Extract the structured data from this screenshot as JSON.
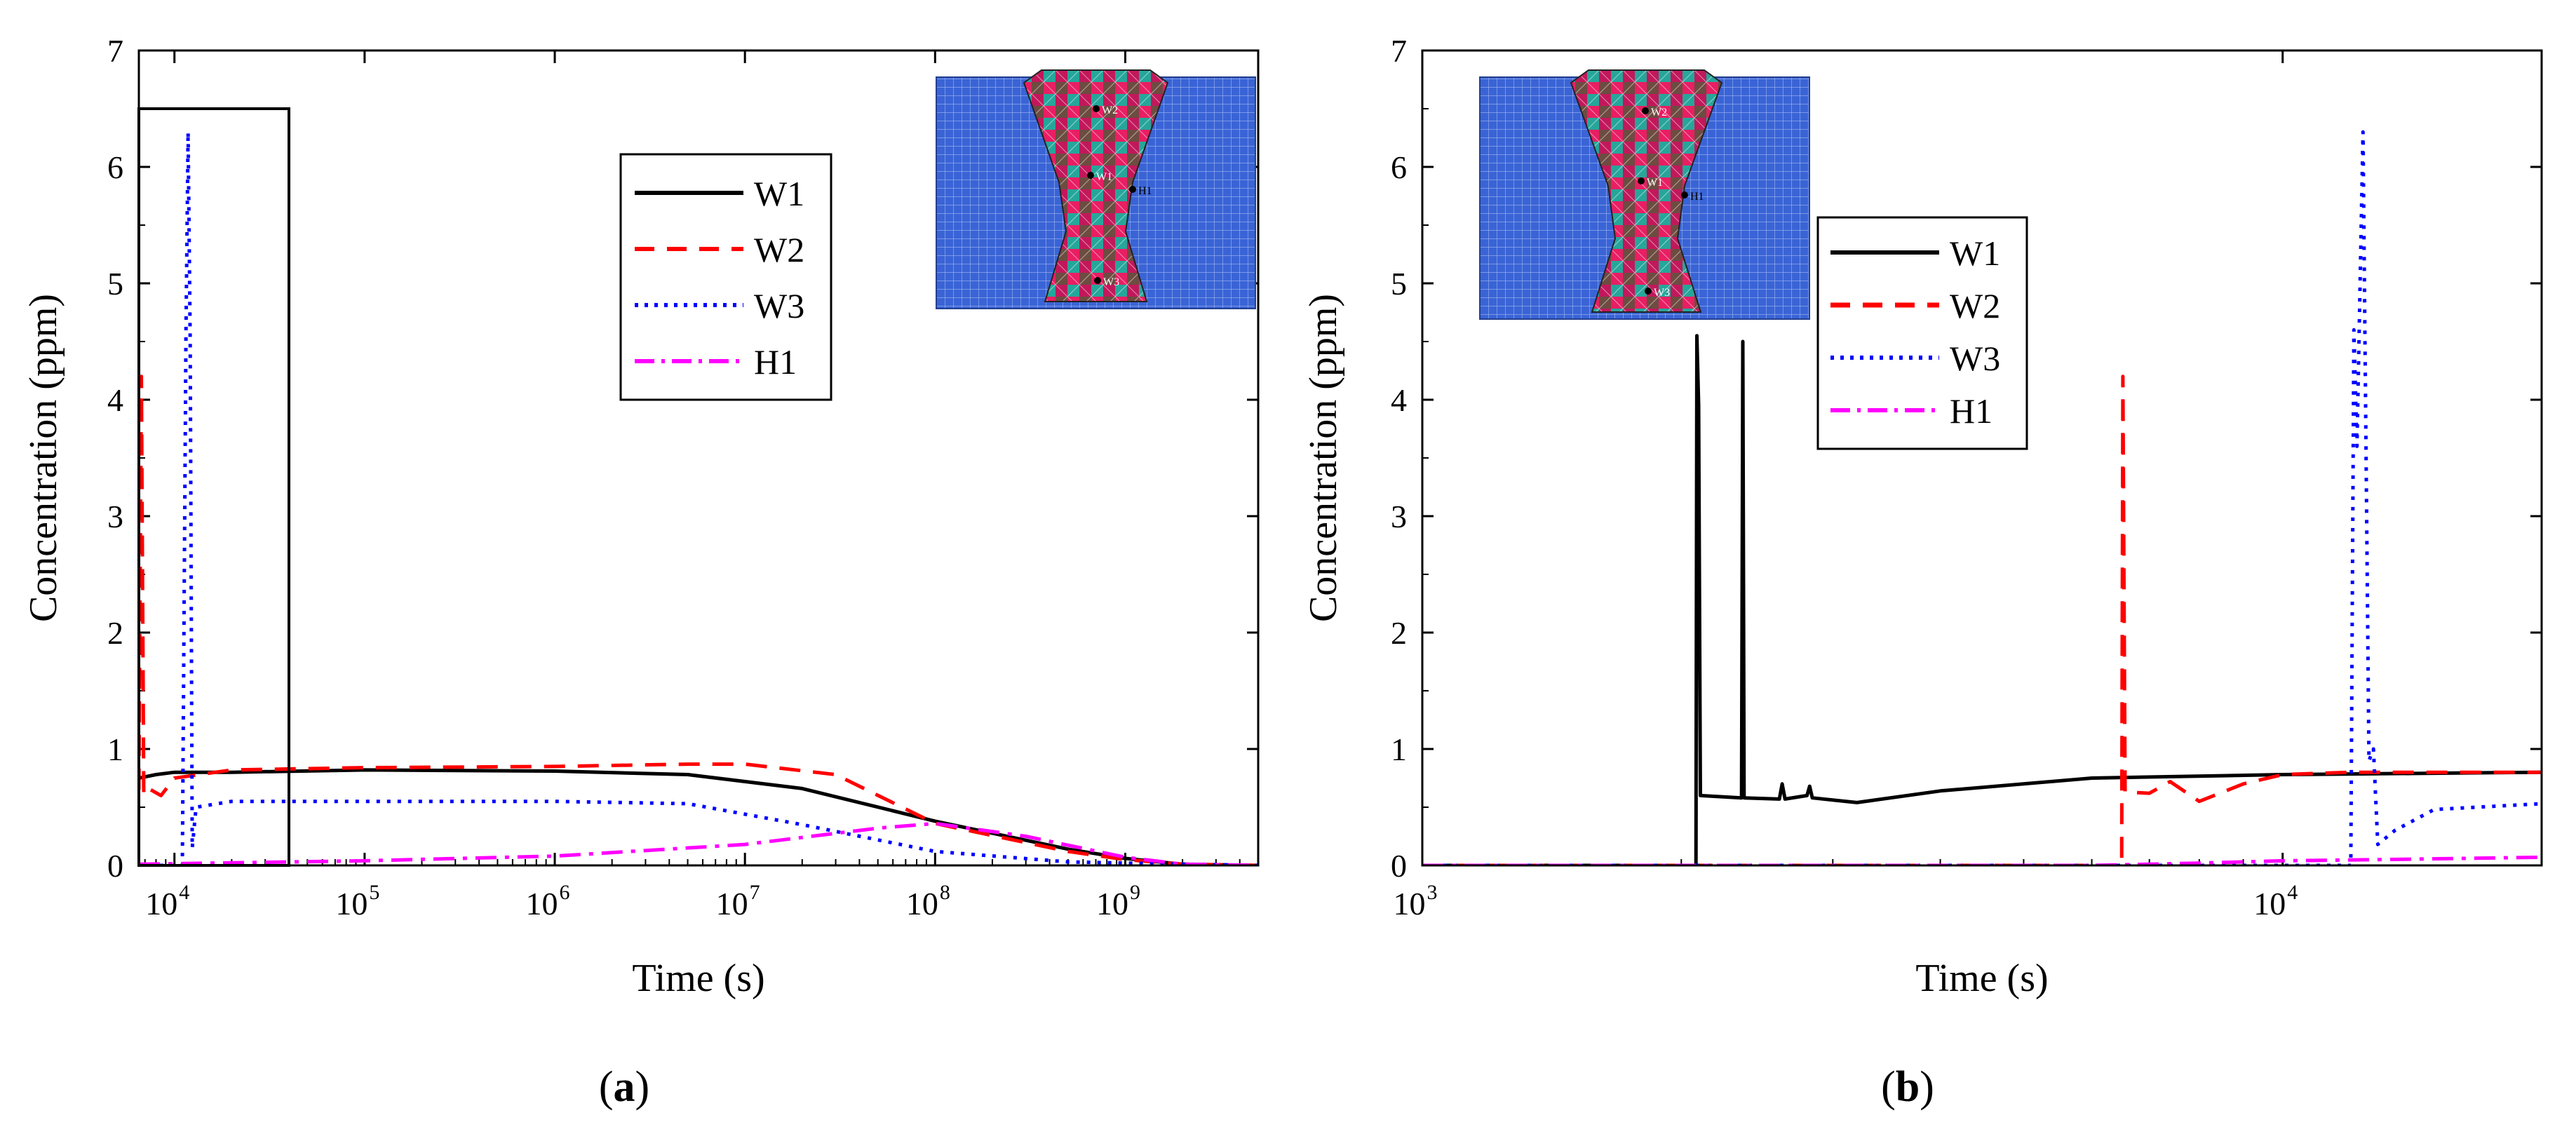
{
  "figure": {
    "panel_labels": [
      "a",
      "b"
    ]
  },
  "chart_data": [
    {
      "id": "a",
      "type": "line",
      "xscale": "log",
      "xlim": [
        6500,
        5000000000
      ],
      "ylim": [
        0,
        7
      ],
      "xticks": [
        {
          "value": 10000,
          "base": "10",
          "exp": "4"
        },
        {
          "value": 100000,
          "base": "10",
          "exp": "5"
        },
        {
          "value": 1000000,
          "base": "10",
          "exp": "6"
        },
        {
          "value": 10000000,
          "base": "10",
          "exp": "7"
        },
        {
          "value": 100000000,
          "base": "10",
          "exp": "8"
        },
        {
          "value": 1000000000,
          "base": "10",
          "exp": "9"
        }
      ],
      "yticks": [
        0,
        1,
        2,
        3,
        4,
        5,
        6,
        7
      ],
      "xlabel": "Time (s)",
      "ylabel": "Concentration (ppm)",
      "legend": [
        "W1",
        "W2",
        "W3",
        "H1"
      ],
      "legend_position": "top-center",
      "inset": "weld mesh with monitoring points W1, W2, W3, H1",
      "highlight_box": {
        "x": [
          6500,
          40000
        ],
        "y": [
          0,
          6.5
        ]
      },
      "series": [
        {
          "name": "W1",
          "color": "#000000",
          "dash": "solid",
          "points": [
            [
              6500,
              0.75
            ],
            [
              8000,
              0.78
            ],
            [
              10000,
              0.8
            ],
            [
              20000,
              0.8
            ],
            [
              100000,
              0.82
            ],
            [
              1000000,
              0.81
            ],
            [
              5000000,
              0.78
            ],
            [
              20000000,
              0.66
            ],
            [
              100000000,
              0.38
            ],
            [
              500000000,
              0.14
            ],
            [
              1000000000,
              0.06
            ],
            [
              2000000000,
              0.01
            ],
            [
              5000000000,
              0
            ]
          ]
        },
        {
          "name": "W2",
          "color": "#ff0000",
          "dash": "dashed",
          "points": [
            [
              6500,
              0.65
            ],
            [
              6700,
              4.2
            ],
            [
              6900,
              0.6
            ],
            [
              7500,
              0.65
            ],
            [
              8500,
              0.6
            ],
            [
              10000,
              0.75
            ],
            [
              20000,
              0.82
            ],
            [
              100000,
              0.84
            ],
            [
              1000000,
              0.85
            ],
            [
              5000000,
              0.87
            ],
            [
              10000000,
              0.87
            ],
            [
              30000000,
              0.78
            ],
            [
              100000000,
              0.36
            ],
            [
              500000000,
              0.12
            ],
            [
              1000000000,
              0.05
            ],
            [
              2000000000,
              0.01
            ],
            [
              5000000000,
              0
            ]
          ]
        },
        {
          "name": "W3",
          "color": "#0000ff",
          "dash": "dotted",
          "points": [
            [
              6500,
              0
            ],
            [
              11000,
              0
            ],
            [
              11500,
              4.6
            ],
            [
              11800,
              6.3
            ],
            [
              12100,
              4.5
            ],
            [
              12400,
              0.15
            ],
            [
              13000,
              0.5
            ],
            [
              20000,
              0.55
            ],
            [
              100000,
              0.55
            ],
            [
              1000000,
              0.55
            ],
            [
              5000000,
              0.53
            ],
            [
              20000000,
              0.35
            ],
            [
              100000000,
              0.12
            ],
            [
              500000000,
              0.03
            ],
            [
              1000000000,
              0.02
            ],
            [
              5000000000,
              0
            ]
          ]
        },
        {
          "name": "H1",
          "color": "#ff00ff",
          "dash": "dashdot",
          "points": [
            [
              6500,
              0.01
            ],
            [
              100000,
              0.04
            ],
            [
              1000000,
              0.08
            ],
            [
              10000000,
              0.18
            ],
            [
              50000000,
              0.32
            ],
            [
              100000000,
              0.36
            ],
            [
              300000000,
              0.25
            ],
            [
              1000000000,
              0.07
            ],
            [
              2000000000,
              0.01
            ],
            [
              5000000000,
              0
            ]
          ]
        }
      ]
    },
    {
      "id": "b",
      "type": "line",
      "xscale": "log",
      "xlim": [
        1000,
        20000
      ],
      "ylim": [
        0,
        7
      ],
      "xticks": [
        {
          "value": 1000,
          "base": "10",
          "exp": "3"
        },
        {
          "value": 10000,
          "base": "10",
          "exp": "4"
        }
      ],
      "yticks": [
        0,
        1,
        2,
        3,
        4,
        5,
        6,
        7
      ],
      "xlabel": "Time (s)",
      "ylabel": "Concentration (ppm)",
      "legend": [
        "W1",
        "W2",
        "W3",
        "H1"
      ],
      "legend_position": "top-left",
      "inset": "weld mesh with monitoring points W1, W2, W3, H1",
      "series": [
        {
          "name": "W1",
          "color": "#000000",
          "dash": "solid",
          "points": [
            [
              1000,
              0
            ],
            [
              2080,
              0
            ],
            [
              2085,
              4.55
            ],
            [
              2095,
              3.95
            ],
            [
              2105,
              0.6
            ],
            [
              2350,
              0.58
            ],
            [
              2358,
              4.5
            ],
            [
              2366,
              0.58
            ],
            [
              2600,
              0.57
            ],
            [
              2620,
              0.7
            ],
            [
              2640,
              0.57
            ],
            [
              2800,
              0.6
            ],
            [
              2820,
              0.68
            ],
            [
              2840,
              0.58
            ],
            [
              3200,
              0.54
            ],
            [
              4000,
              0.64
            ],
            [
              6000,
              0.75
            ],
            [
              10000,
              0.78
            ],
            [
              20000,
              0.8
            ]
          ]
        },
        {
          "name": "W2",
          "color": "#ff0000",
          "dash": "dashed",
          "points": [
            [
              1000,
              0
            ],
            [
              6500,
              0
            ],
            [
              6520,
              4.2
            ],
            [
              6560,
              0.63
            ],
            [
              7000,
              0.62
            ],
            [
              7400,
              0.72
            ],
            [
              8000,
              0.55
            ],
            [
              9000,
              0.7
            ],
            [
              10000,
              0.78
            ],
            [
              12000,
              0.8
            ],
            [
              20000,
              0.8
            ]
          ]
        },
        {
          "name": "W3",
          "color": "#0000ff",
          "dash": "dotted",
          "points": [
            [
              1000,
              0
            ],
            [
              12000,
              0
            ],
            [
              12100,
              4.6
            ],
            [
              12200,
              3.6
            ],
            [
              12400,
              6.3
            ],
            [
              12600,
              0.9
            ],
            [
              12750,
              1.0
            ],
            [
              12900,
              0.18
            ],
            [
              13500,
              0.3
            ],
            [
              15000,
              0.48
            ],
            [
              20000,
              0.53
            ]
          ]
        },
        {
          "name": "H1",
          "color": "#ff00ff",
          "dash": "dashdot",
          "points": [
            [
              1000,
              0
            ],
            [
              6000,
              0
            ],
            [
              8000,
              0.02
            ],
            [
              10000,
              0.04
            ],
            [
              13000,
              0.05
            ],
            [
              20000,
              0.07
            ]
          ]
        }
      ]
    }
  ]
}
